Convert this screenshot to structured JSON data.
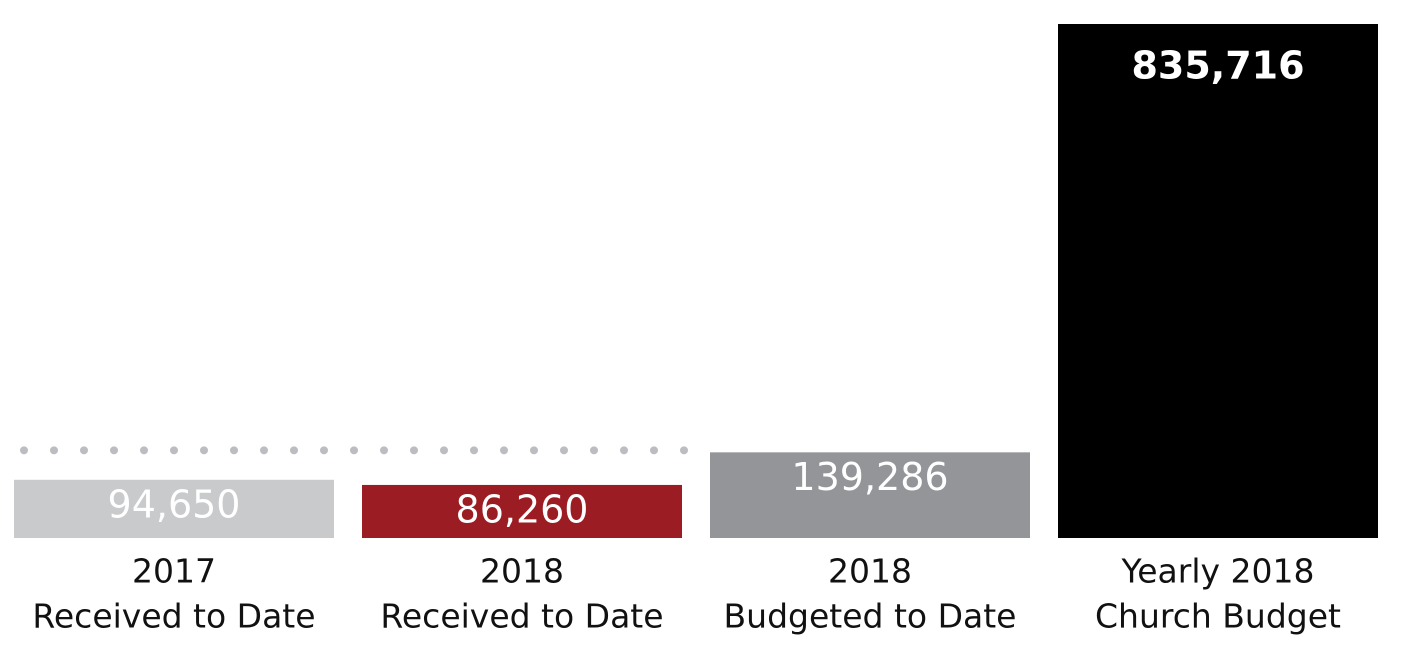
{
  "chart_data": {
    "type": "bar",
    "categories": [
      [
        "2017",
        "Received to Date"
      ],
      [
        "2018",
        "Received to Date"
      ],
      [
        "2018",
        "Budgeted to Date"
      ],
      [
        "Yearly 2018",
        "Church Budget"
      ]
    ],
    "values": [
      94650,
      86260,
      139286,
      835716
    ],
    "value_labels": [
      "94,650",
      "86,260",
      "139,286",
      "835,716"
    ],
    "colors": [
      "#c9cacc",
      "#9b1c22",
      "#939598",
      "#000000"
    ]
  }
}
